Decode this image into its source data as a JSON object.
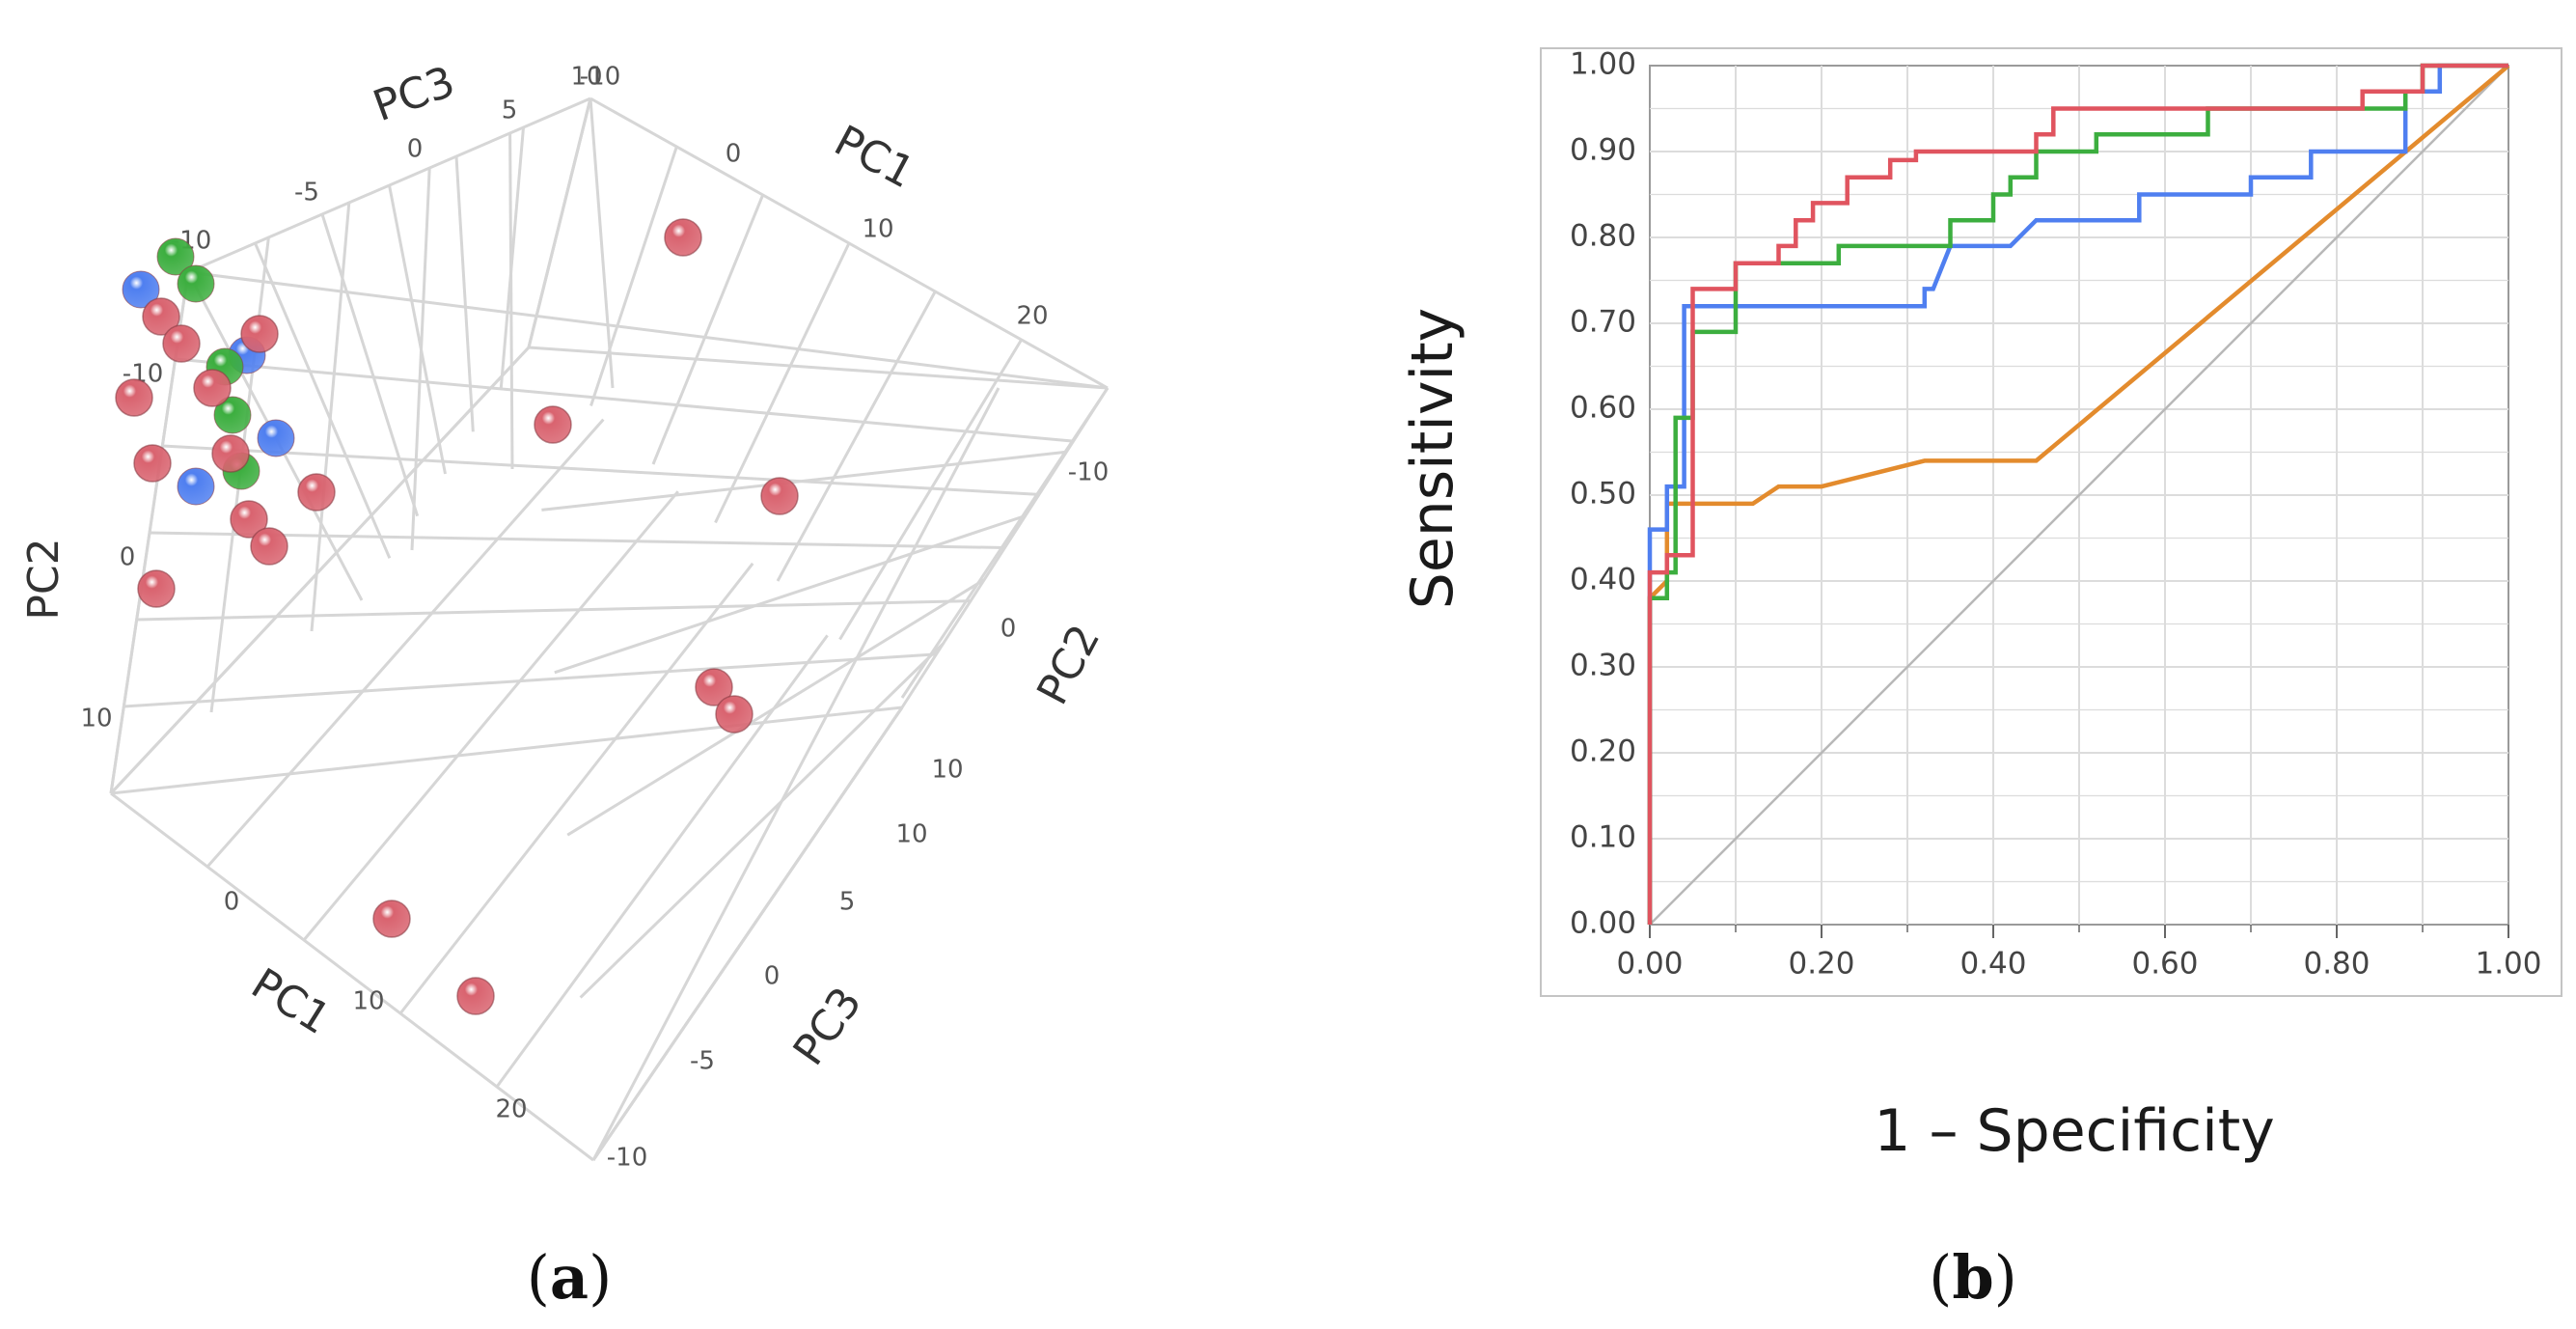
{
  "colors": {
    "red": "#e0545f",
    "green": "#3cae3f",
    "blue": "#4f7ff0",
    "orange": "#e38b2d",
    "diagonal": "#b8b8b8",
    "grid": "#dcdcdc",
    "sphere_red": "#d9636f"
  },
  "panel_a": {
    "label_open": "(",
    "label_letter": "a",
    "label_close": ")"
  },
  "panel_b": {
    "label_open": "(",
    "label_letter": "b",
    "label_close": ")"
  },
  "chart_data": [
    {
      "type": "scatter",
      "projection": "3d",
      "title": "",
      "axes": {
        "PC1": {
          "label": "PC1",
          "range": [
            -10,
            20
          ],
          "ticks": [
            "0",
            "10",
            "20"
          ],
          "ticks_back": [
            "0",
            "10",
            "20"
          ],
          "ticks_front": [
            "0",
            "10",
            "20"
          ]
        },
        "PC2": {
          "label": "PC2",
          "range": [
            -10,
            10
          ],
          "ticks_right": [
            "-10",
            "0",
            "10"
          ],
          "ticks_left": [
            "-10",
            "0",
            "10"
          ]
        },
        "PC3": {
          "label": "PC3",
          "range": [
            -10,
            10
          ],
          "ticks_top": [
            "-10",
            "-5",
            "0",
            "5",
            "10"
          ],
          "ticks_bottom": [
            "10",
            "5",
            "0",
            "-5",
            "-10"
          ]
        }
      },
      "top_corner_label": "-10",
      "series": [
        {
          "name": "red",
          "color": "#d9636f",
          "points": [
            {
              "pc1": -6,
              "pc2": -1,
              "pc3": 3
            },
            {
              "pc1": -5,
              "pc2": -1,
              "pc3": 2
            },
            {
              "pc1": -6,
              "pc2": 0,
              "pc3": 1
            },
            {
              "pc1": -4,
              "pc2": 0,
              "pc3": 2
            },
            {
              "pc1": -5,
              "pc2": 1,
              "pc3": 0
            },
            {
              "pc1": -3,
              "pc2": -1,
              "pc3": 3
            },
            {
              "pc1": -3,
              "pc2": 1,
              "pc3": 1
            },
            {
              "pc1": -2,
              "pc2": 2,
              "pc3": 0
            },
            {
              "pc1": -1,
              "pc2": 2,
              "pc3": -1
            },
            {
              "pc1": -4,
              "pc2": 3,
              "pc3": -2
            },
            {
              "pc1": 0,
              "pc2": 1,
              "pc3": 0
            },
            {
              "pc1": 10,
              "pc2": -6,
              "pc3": 2
            },
            {
              "pc1": 6,
              "pc2": 0,
              "pc3": 3
            },
            {
              "pc1": 14,
              "pc2": -1,
              "pc3": 0
            },
            {
              "pc1": 13,
              "pc2": 3,
              "pc3": -2
            },
            {
              "pc1": 14,
              "pc2": 3,
              "pc3": -3
            },
            {
              "pc1": 5,
              "pc2": 8,
              "pc3": -6
            },
            {
              "pc1": 8,
              "pc2": 9,
              "pc3": -7
            }
          ]
        },
        {
          "name": "green",
          "color": "#3cae3f",
          "points": [
            {
              "pc1": -6,
              "pc2": -2,
              "pc3": 4
            },
            {
              "pc1": -5,
              "pc2": -2,
              "pc3": 3
            },
            {
              "pc1": -4,
              "pc2": 0,
              "pc3": 3
            },
            {
              "pc1": -3,
              "pc2": 0,
              "pc3": 1
            },
            {
              "pc1": -3,
              "pc2": 2,
              "pc3": 2
            }
          ]
        },
        {
          "name": "blue",
          "color": "#4f7ff0",
          "points": [
            {
              "pc1": -7,
              "pc2": -1,
              "pc3": 4
            },
            {
              "pc1": -3,
              "pc2": -1,
              "pc3": 2
            },
            {
              "pc1": -2,
              "pc2": 1,
              "pc3": 2
            },
            {
              "pc1": -4,
              "pc2": 2,
              "pc3": 1
            }
          ]
        }
      ]
    },
    {
      "type": "line",
      "subtype": "roc",
      "xlabel": "1 – Specificity",
      "ylabel": "Sensitivity",
      "xlim": [
        0,
        1
      ],
      "ylim": [
        0,
        1
      ],
      "grid": true,
      "xticks": [
        "0.00",
        "0.20",
        "0.40",
        "0.60",
        "0.80",
        "1.00"
      ],
      "yticks": [
        "0.00",
        "0.10",
        "0.20",
        "0.30",
        "0.40",
        "0.50",
        "0.60",
        "0.70",
        "0.80",
        "0.90",
        "1.00"
      ],
      "series": [
        {
          "name": "red",
          "color": "#e0545f",
          "points": [
            [
              0,
              0
            ],
            [
              0,
              0.41
            ],
            [
              0.02,
              0.41
            ],
            [
              0.02,
              0.43
            ],
            [
              0.05,
              0.43
            ],
            [
              0.05,
              0.74
            ],
            [
              0.1,
              0.74
            ],
            [
              0.1,
              0.77
            ],
            [
              0.15,
              0.77
            ],
            [
              0.15,
              0.79
            ],
            [
              0.17,
              0.79
            ],
            [
              0.17,
              0.82
            ],
            [
              0.19,
              0.82
            ],
            [
              0.19,
              0.84
            ],
            [
              0.23,
              0.84
            ],
            [
              0.23,
              0.87
            ],
            [
              0.28,
              0.87
            ],
            [
              0.28,
              0.89
            ],
            [
              0.31,
              0.89
            ],
            [
              0.31,
              0.9
            ],
            [
              0.45,
              0.9
            ],
            [
              0.45,
              0.92
            ],
            [
              0.47,
              0.92
            ],
            [
              0.47,
              0.95
            ],
            [
              0.83,
              0.95
            ],
            [
              0.83,
              0.97
            ],
            [
              0.9,
              0.97
            ],
            [
              0.9,
              1.0
            ],
            [
              1.0,
              1.0
            ]
          ]
        },
        {
          "name": "green",
          "color": "#3cae3f",
          "points": [
            [
              0,
              0
            ],
            [
              0,
              0.38
            ],
            [
              0.02,
              0.38
            ],
            [
              0.02,
              0.41
            ],
            [
              0.03,
              0.41
            ],
            [
              0.03,
              0.59
            ],
            [
              0.05,
              0.59
            ],
            [
              0.05,
              0.69
            ],
            [
              0.1,
              0.69
            ],
            [
              0.1,
              0.77
            ],
            [
              0.22,
              0.77
            ],
            [
              0.22,
              0.79
            ],
            [
              0.35,
              0.79
            ],
            [
              0.35,
              0.82
            ],
            [
              0.4,
              0.82
            ],
            [
              0.4,
              0.85
            ],
            [
              0.42,
              0.85
            ],
            [
              0.42,
              0.87
            ],
            [
              0.45,
              0.87
            ],
            [
              0.45,
              0.9
            ],
            [
              0.52,
              0.9
            ],
            [
              0.52,
              0.92
            ],
            [
              0.65,
              0.92
            ],
            [
              0.65,
              0.95
            ],
            [
              0.88,
              0.95
            ],
            [
              0.88,
              0.97
            ],
            [
              0.9,
              0.97
            ],
            [
              0.9,
              1.0
            ],
            [
              1.0,
              1.0
            ]
          ]
        },
        {
          "name": "blue",
          "color": "#4f7ff0",
          "points": [
            [
              0,
              0
            ],
            [
              0,
              0.46
            ],
            [
              0.02,
              0.46
            ],
            [
              0.02,
              0.51
            ],
            [
              0.04,
              0.51
            ],
            [
              0.04,
              0.72
            ],
            [
              0.32,
              0.72
            ],
            [
              0.32,
              0.74
            ],
            [
              0.33,
              0.74
            ],
            [
              0.35,
              0.79
            ],
            [
              0.42,
              0.79
            ],
            [
              0.45,
              0.82
            ],
            [
              0.57,
              0.82
            ],
            [
              0.57,
              0.85
            ],
            [
              0.7,
              0.85
            ],
            [
              0.7,
              0.87
            ],
            [
              0.77,
              0.87
            ],
            [
              0.77,
              0.9
            ],
            [
              0.88,
              0.9
            ],
            [
              0.88,
              0.97
            ],
            [
              0.92,
              0.97
            ],
            [
              0.92,
              1.0
            ],
            [
              1.0,
              1.0
            ]
          ]
        },
        {
          "name": "orange",
          "color": "#e38b2d",
          "points": [
            [
              0,
              0
            ],
            [
              0,
              0.38
            ],
            [
              0.02,
              0.4
            ],
            [
              0.02,
              0.49
            ],
            [
              0.12,
              0.49
            ],
            [
              0.15,
              0.51
            ],
            [
              0.2,
              0.51
            ],
            [
              0.32,
              0.54
            ],
            [
              0.45,
              0.54
            ],
            [
              1.0,
              1.0
            ]
          ]
        },
        {
          "name": "reference",
          "color": "#b8b8b8",
          "points": [
            [
              0,
              0
            ],
            [
              1,
              1
            ]
          ]
        }
      ]
    }
  ]
}
